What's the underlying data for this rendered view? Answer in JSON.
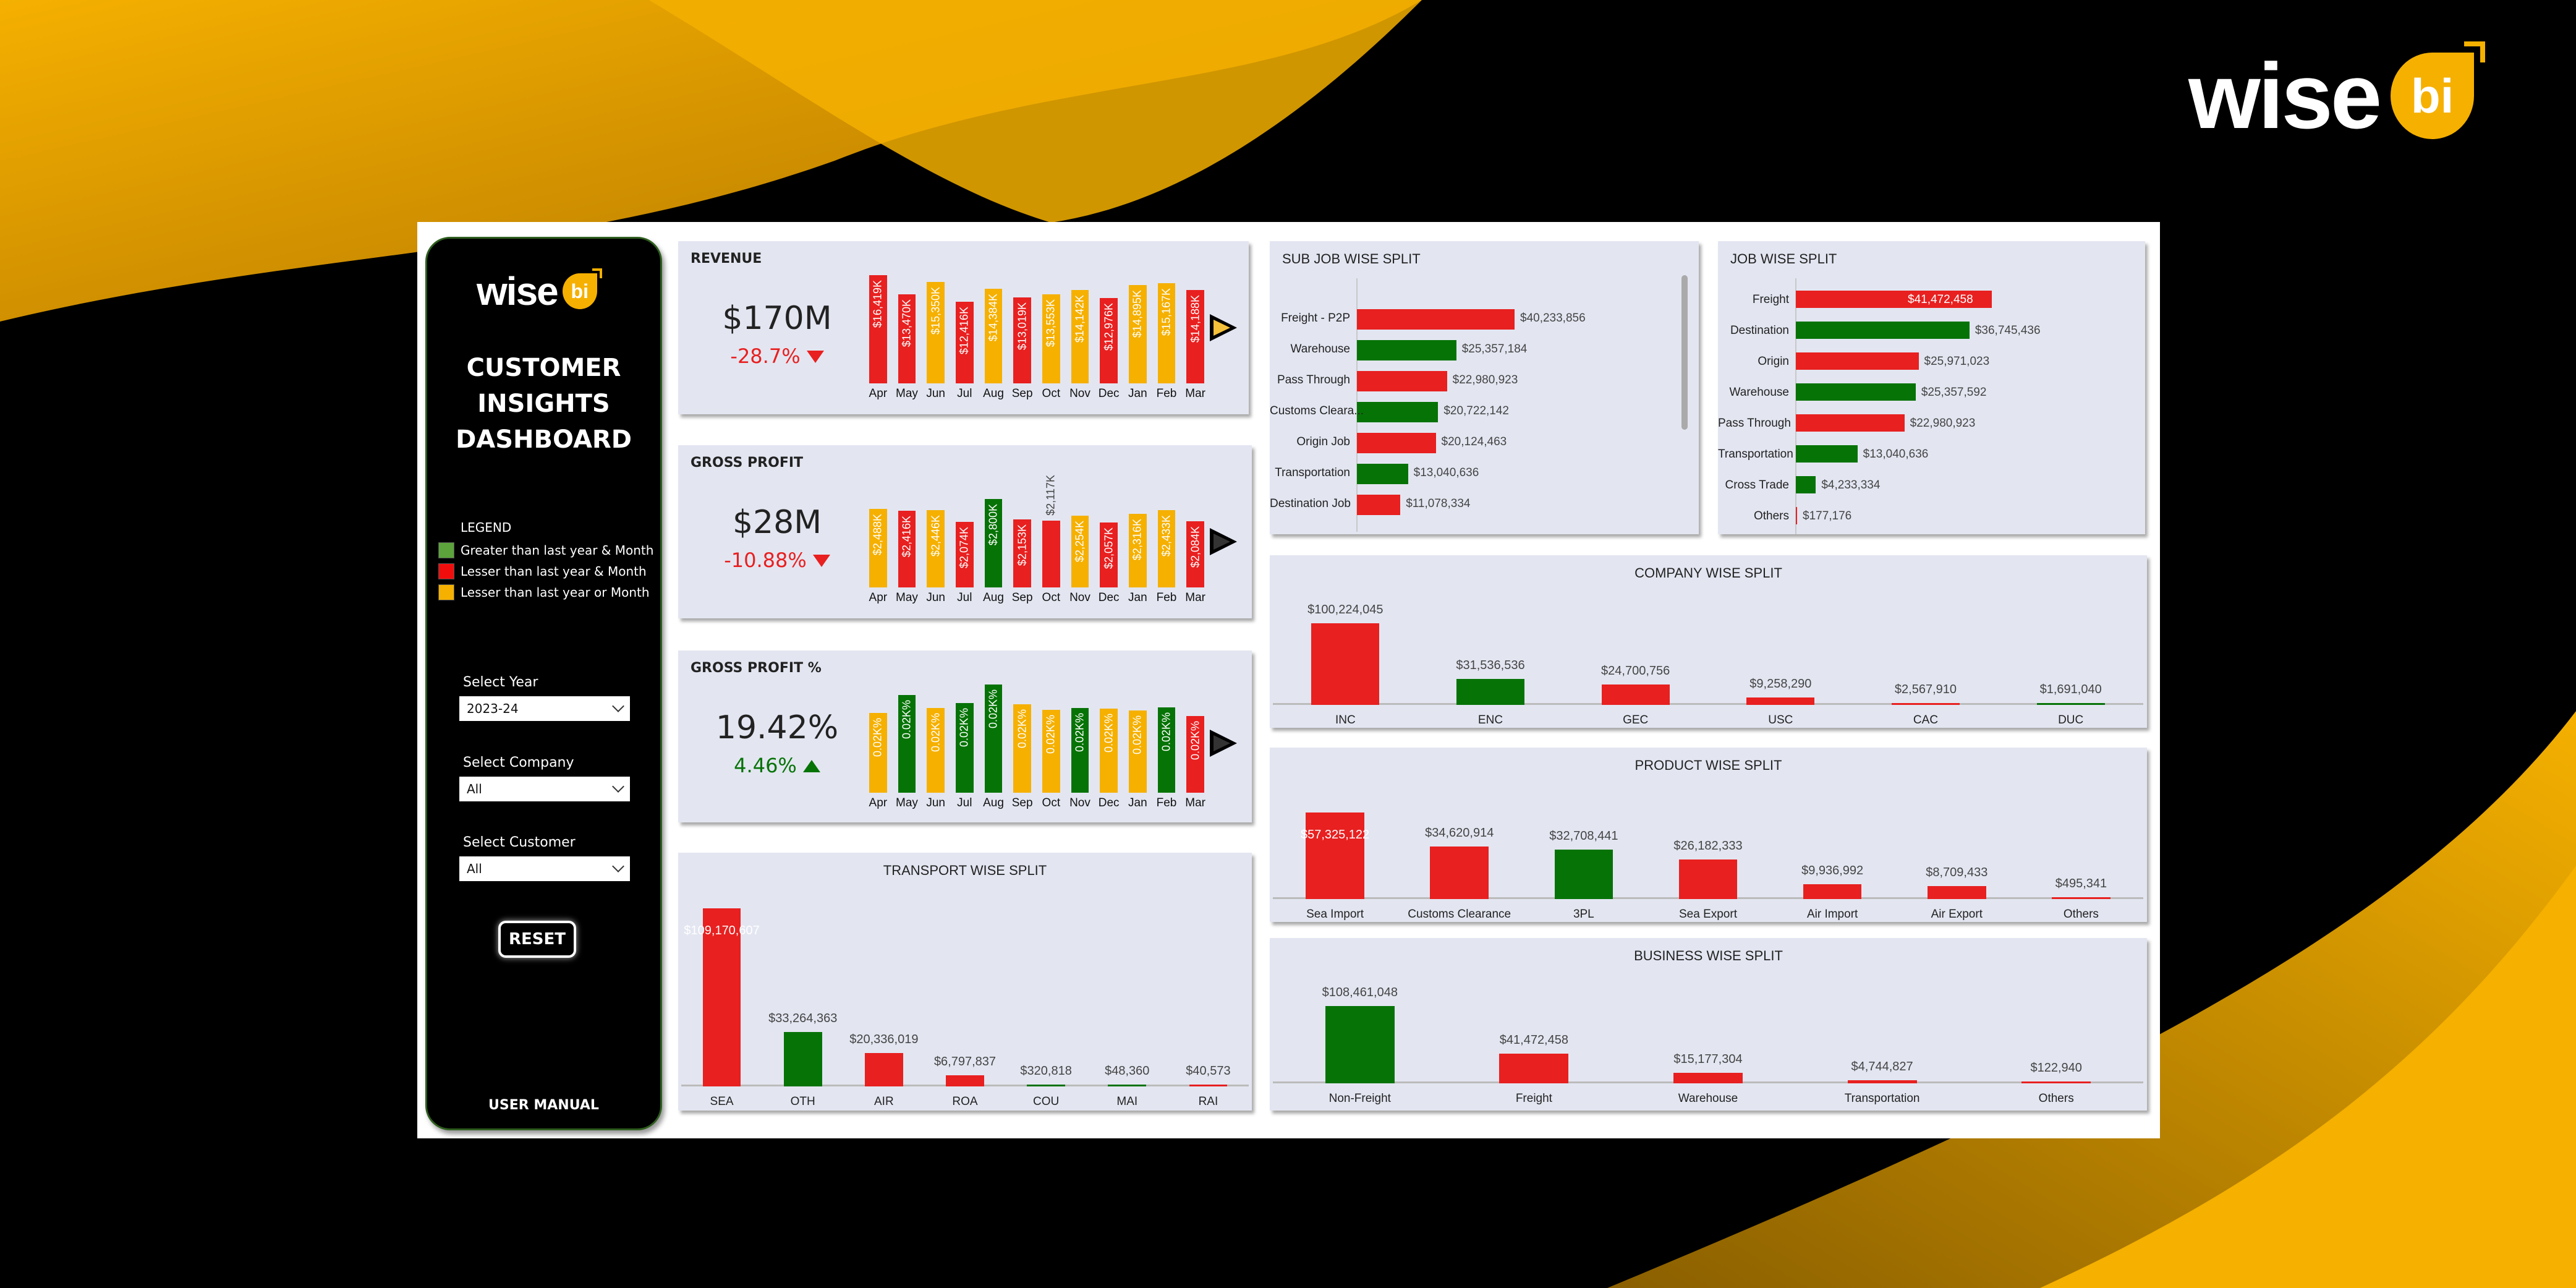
{
  "brand": {
    "word": "wise",
    "badge": "bi"
  },
  "colors": {
    "red": "#E82020",
    "green": "#067306",
    "yellow": "#F5B000",
    "panel": "#E3E6F1"
  },
  "sidebar": {
    "title": [
      "CUSTOMER",
      "INSIGHTS",
      "DASHBOARD"
    ],
    "legend": {
      "title": "LEGEND",
      "items": [
        {
          "label": "Greater than last year & Month",
          "color": "#5BA33A"
        },
        {
          "label": "Lesser than last year & Month",
          "color": "#F20D0D"
        },
        {
          "label": "Lesser than last year or Month",
          "color": "#F5B000"
        }
      ]
    },
    "filters": [
      {
        "label": "Select Year",
        "value": "2023-24"
      },
      {
        "label": "Select Company",
        "value": "All"
      },
      {
        "label": "Select Customer",
        "value": "All"
      }
    ],
    "reset_label": "RESET",
    "manual_label": "USER MANUAL"
  },
  "kpis": [
    {
      "title": "REVENUE",
      "value": "$170M",
      "change": "-28.7%",
      "direction": "down",
      "arrow_color": "#F5C03A"
    },
    {
      "title": "GROSS PROFIT",
      "value": "$28M",
      "change": "-10.88%",
      "direction": "down",
      "arrow_color": "#333333"
    },
    {
      "title": "GROSS PROFIT %",
      "value": "19.42%",
      "change": "4.46%",
      "direction": "up",
      "arrow_color": "#333333"
    }
  ],
  "chart_data": [
    {
      "id": "revenue",
      "type": "bar",
      "categories": [
        "Apr",
        "May",
        "Jun",
        "Jul",
        "Aug",
        "Sep",
        "Oct",
        "Nov",
        "Dec",
        "Jan",
        "Feb",
        "Mar"
      ],
      "values": [
        16419,
        13470,
        15350,
        12416,
        14384,
        13019,
        13553,
        14142,
        12976,
        14895,
        15167,
        14188
      ],
      "labels": [
        "$16,419K",
        "$13,470K",
        "$15,350K",
        "$12,416K",
        "$14,384K",
        "$13,019K",
        "$13,553K",
        "$14,142K",
        "$12,976K",
        "$14,895K",
        "$15,167K",
        "$14,188K"
      ],
      "colors": [
        "red",
        "red",
        "yellow",
        "red",
        "yellow",
        "red",
        "yellow",
        "yellow",
        "red",
        "yellow",
        "yellow",
        "red"
      ]
    },
    {
      "id": "gross_profit",
      "type": "bar",
      "categories": [
        "Apr",
        "May",
        "Jun",
        "Jul",
        "Aug",
        "Sep",
        "Oct",
        "Nov",
        "Dec",
        "Jan",
        "Feb",
        "Mar"
      ],
      "values": [
        2488,
        2416,
        2446,
        2074,
        2800,
        2153,
        2117,
        2254,
        2057,
        2316,
        2433,
        2084
      ],
      "labels": [
        "$2,488K",
        "$2,416K",
        "$2,446K",
        "$2,074K",
        "$2,800K",
        "$2,153K",
        "$2,117K",
        "$2,254K",
        "$2,057K",
        "$2,316K",
        "$2,433K",
        "$2,084K"
      ],
      "colors": [
        "yellow",
        "red",
        "yellow",
        "red",
        "green",
        "red",
        "red",
        "yellow",
        "red",
        "yellow",
        "yellow",
        "red"
      ],
      "outside_labels": [
        6
      ]
    },
    {
      "id": "gross_profit_pct",
      "type": "bar",
      "categories": [
        "Apr",
        "May",
        "Jun",
        "Jul",
        "Aug",
        "Sep",
        "Oct",
        "Nov",
        "Dec",
        "Jan",
        "Feb",
        "Mar"
      ],
      "values": [
        16.2,
        19.9,
        17.2,
        18.2,
        22.0,
        18.0,
        16.8,
        17.2,
        17.1,
        16.7,
        17.4,
        15.6
      ],
      "labels": [
        "0.02K%",
        "0.02K%",
        "0.02K%",
        "0.02K%",
        "0.02K%",
        "0.02K%",
        "0.02K%",
        "0.02K%",
        "0.02K%",
        "0.02K%",
        "0.02K%",
        "0.02K%"
      ],
      "colors": [
        "yellow",
        "green",
        "yellow",
        "green",
        "green",
        "yellow",
        "yellow",
        "green",
        "yellow",
        "yellow",
        "green",
        "red"
      ]
    },
    {
      "id": "transport",
      "type": "bar",
      "title": "TRANSPORT WISE SPLIT",
      "categories": [
        "SEA",
        "OTH",
        "AIR",
        "ROA",
        "COU",
        "MAI",
        "RAI"
      ],
      "values": [
        109170607,
        33264363,
        20336019,
        6797837,
        320818,
        48360,
        40573
      ],
      "labels": [
        "$109,170,607",
        "$33,264,363",
        "$20,336,019",
        "$6,797,837",
        "$320,818",
        "$48,360",
        "$40,573"
      ],
      "colors": [
        "red",
        "green",
        "red",
        "red",
        "green",
        "green",
        "red"
      ],
      "inside_labels": [
        0
      ]
    },
    {
      "id": "sub_job",
      "type": "bar",
      "orientation": "horizontal",
      "title": "SUB JOB WISE SPLIT",
      "categories": [
        "Freight - P2P",
        "Warehouse",
        "Pass Through",
        "Customs Cleara...",
        "Origin Job",
        "Transportation",
        "Destination Job"
      ],
      "values": [
        40233856,
        25357184,
        22980923,
        20722142,
        20124463,
        13040636,
        11078334
      ],
      "labels": [
        "$40,233,856",
        "$25,357,184",
        "$22,980,923",
        "$20,722,142",
        "$20,124,463",
        "$13,040,636",
        "$11,078,334"
      ],
      "colors": [
        "red",
        "green",
        "red",
        "green",
        "red",
        "green",
        "red"
      ]
    },
    {
      "id": "job",
      "type": "bar",
      "orientation": "horizontal",
      "title": "JOB WISE SPLIT",
      "categories": [
        "Freight",
        "Destination",
        "Origin",
        "Warehouse",
        "Pass Through",
        "Transportation",
        "Cross Trade",
        "Others"
      ],
      "values": [
        41472458,
        36745436,
        25971023,
        25357592,
        22980923,
        13040636,
        4233334,
        177176
      ],
      "labels": [
        "$41,472,458",
        "$36,745,436",
        "$25,971,023",
        "$25,357,592",
        "$22,980,923",
        "$13,040,636",
        "$4,233,334",
        "$177,176"
      ],
      "colors": [
        "red",
        "green",
        "red",
        "green",
        "red",
        "green",
        "green",
        "red"
      ],
      "inside_labels": [
        0
      ]
    },
    {
      "id": "company",
      "type": "bar",
      "title": "COMPANY WISE SPLIT",
      "categories": [
        "INC",
        "ENC",
        "GEC",
        "USC",
        "CAC",
        "DUC"
      ],
      "values": [
        100224045,
        31536536,
        24700756,
        9258290,
        2567910,
        1691040
      ],
      "labels": [
        "$100,224,045",
        "$31,536,536",
        "$24,700,756",
        "$9,258,290",
        "$2,567,910",
        "$1,691,040"
      ],
      "colors": [
        "red",
        "green",
        "red",
        "red",
        "red",
        "green"
      ]
    },
    {
      "id": "product",
      "type": "bar",
      "title": "PRODUCT WISE SPLIT",
      "categories": [
        "Sea Import",
        "Customs Clearance",
        "3PL",
        "Sea Export",
        "Air Import",
        "Air Export",
        "Others"
      ],
      "values": [
        57325122,
        34620914,
        32708441,
        26182333,
        9936992,
        8709433,
        495341
      ],
      "labels": [
        "$57,325,122",
        "$34,620,914",
        "$32,708,441",
        "$26,182,333",
        "$9,936,992",
        "$8,709,433",
        "$495,341"
      ],
      "colors": [
        "red",
        "red",
        "green",
        "red",
        "red",
        "red",
        "red"
      ],
      "inside_labels": [
        0
      ]
    },
    {
      "id": "business",
      "type": "bar",
      "title": "BUSINESS WISE SPLIT",
      "categories": [
        "Non-Freight",
        "Freight",
        "Warehouse",
        "Transportation",
        "Others"
      ],
      "values": [
        108461048,
        41472458,
        15177304,
        4744827,
        122940
      ],
      "labels": [
        "$108,461,048",
        "$41,472,458",
        "$15,177,304",
        "$4,744,827",
        "$122,940"
      ],
      "colors": [
        "green",
        "red",
        "red",
        "red",
        "red"
      ]
    }
  ]
}
